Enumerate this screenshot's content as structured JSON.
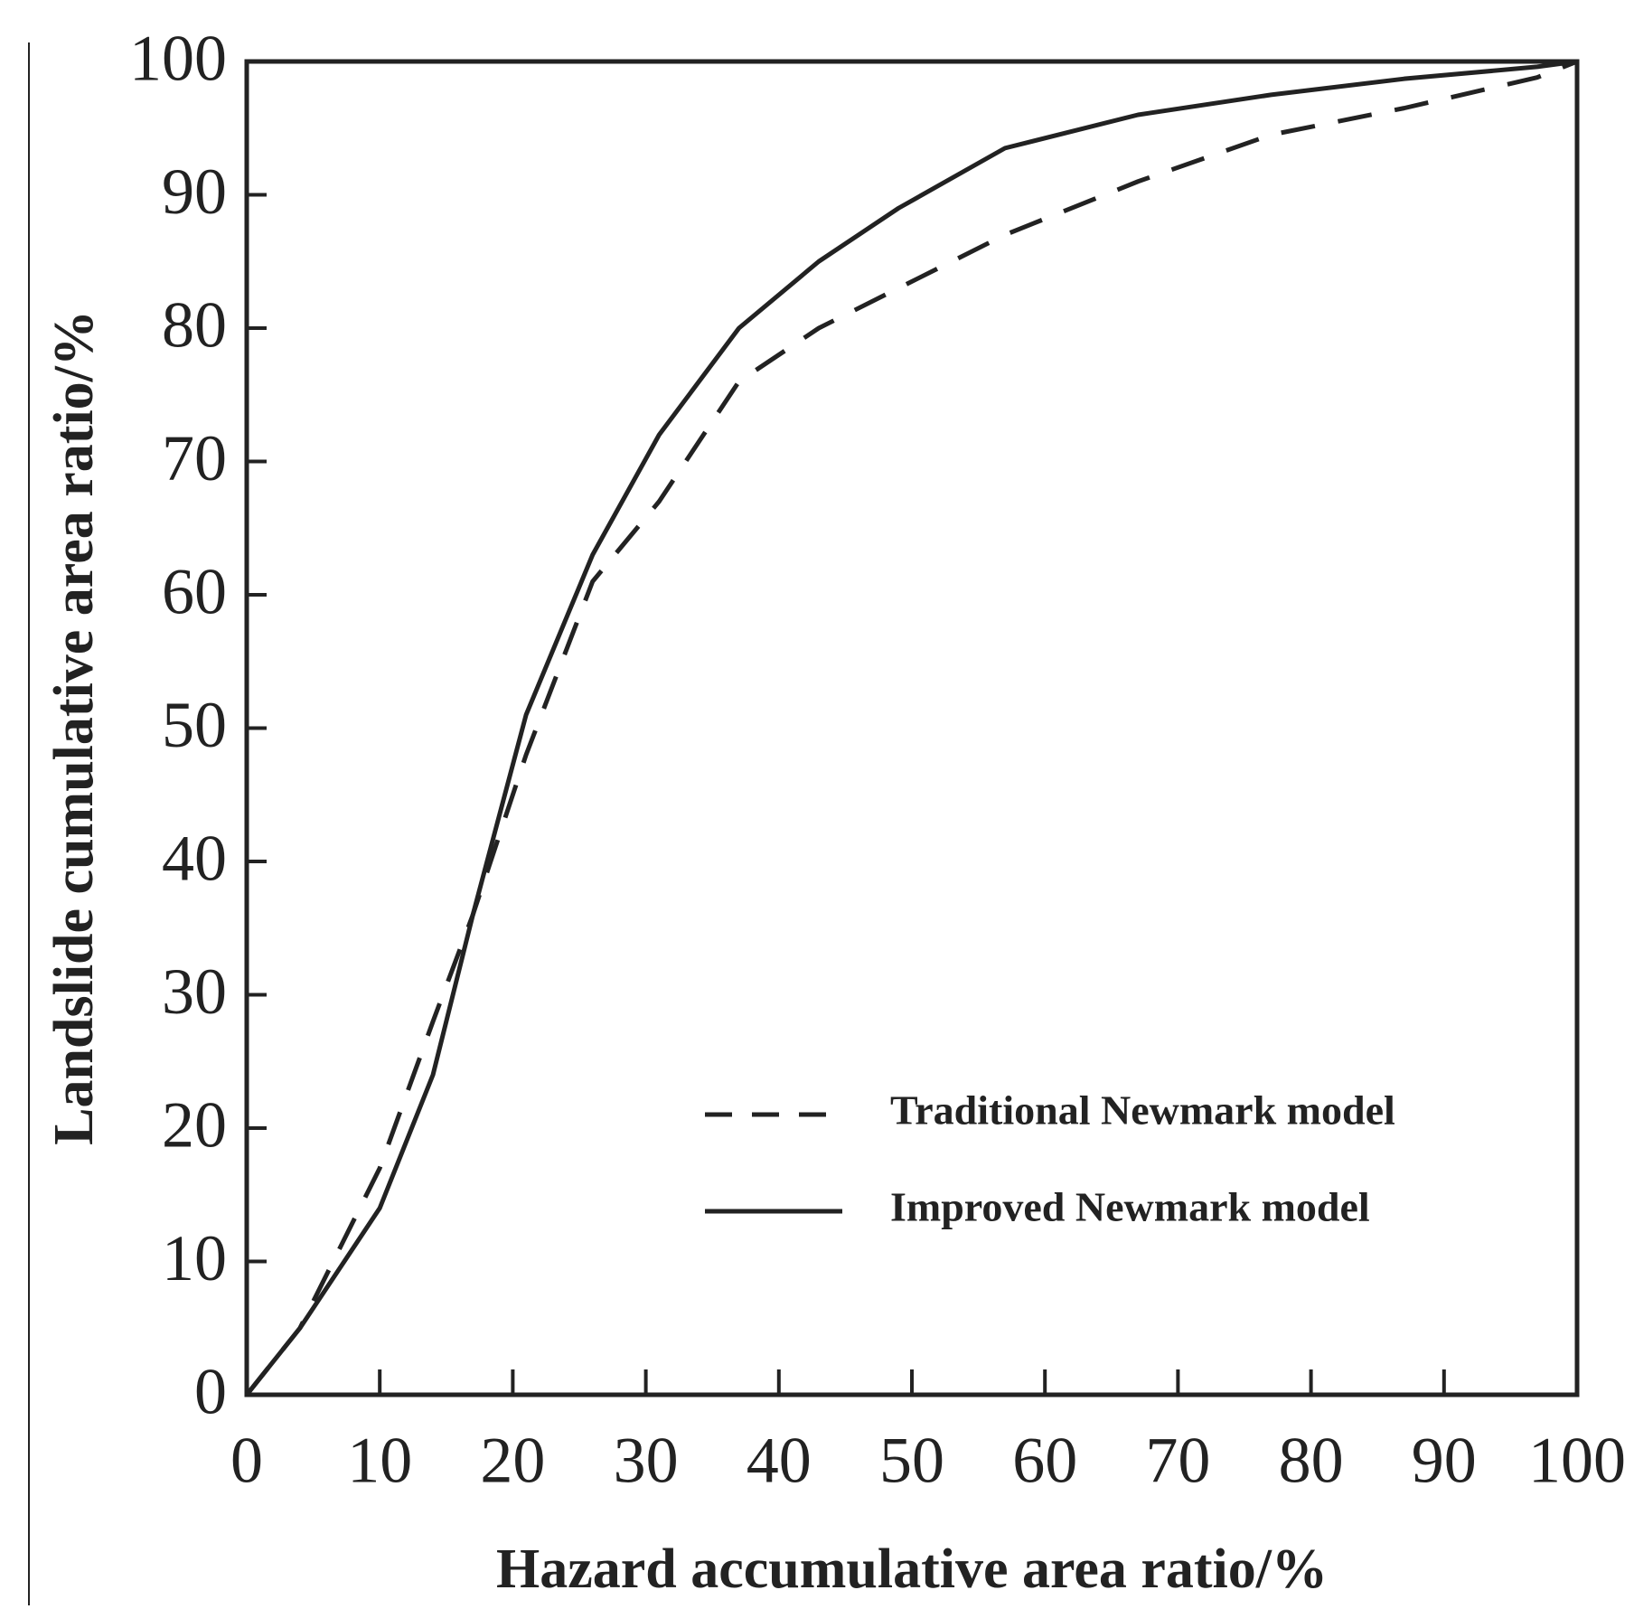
{
  "chart_data": {
    "type": "line",
    "x_label": "Hazard accumulative area ratio/%",
    "y_label": "Landslide cumulative area ratio/%",
    "x": [
      0,
      4,
      10,
      14,
      17,
      21,
      26,
      31,
      37,
      43,
      49,
      57,
      67,
      77,
      87,
      97,
      100
    ],
    "series": [
      {
        "name": "Traditional Newmark model",
        "color": "#222222",
        "line_style": "dashed",
        "values": [
          0,
          5,
          17,
          28,
          36,
          48,
          61,
          67,
          76,
          80,
          83,
          87,
          91,
          94.5,
          96.5,
          98.8,
          100
        ]
      },
      {
        "name": "Improved Newmark model",
        "color": "#222222",
        "line_style": "solid",
        "values": [
          0,
          5,
          14,
          24,
          36,
          51,
          63,
          72,
          80,
          85,
          89,
          93.5,
          96,
          97.5,
          98.7,
          99.6,
          100
        ]
      }
    ],
    "xlim": [
      0,
      100
    ],
    "ylim": [
      0,
      100
    ],
    "xticks": [
      0,
      10,
      20,
      30,
      40,
      50,
      60,
      70,
      80,
      90,
      100
    ],
    "yticks": [
      0,
      10,
      20,
      30,
      40,
      50,
      60,
      70,
      80,
      90,
      100
    ],
    "grid": false,
    "legend": "lower right"
  }
}
